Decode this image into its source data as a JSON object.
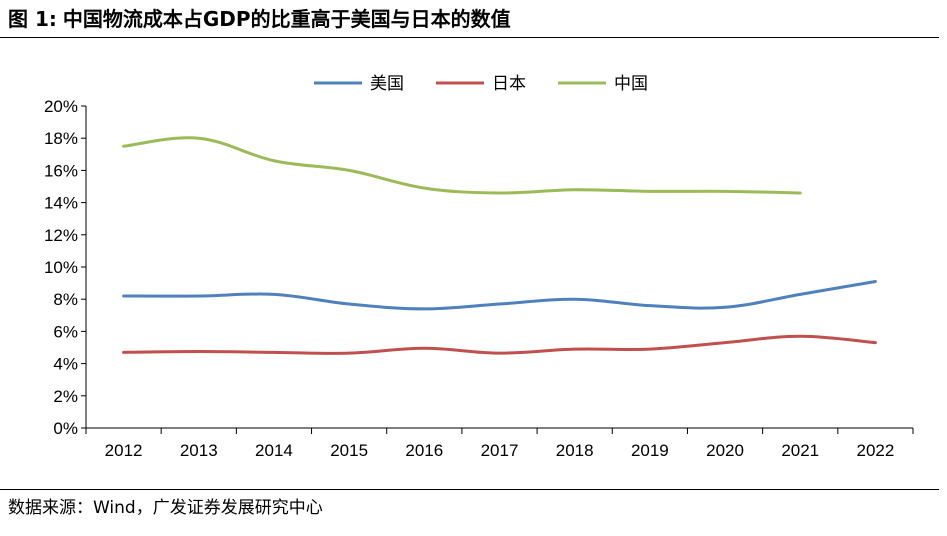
{
  "figure": {
    "label": "图 1:",
    "title": "中国物流成本占GDP的比重高于美国与日本的数值"
  },
  "source": "数据来源：Wind，广发证券发展研究中心",
  "chart_data": {
    "type": "line",
    "title": "中国物流成本占GDP的比重高于美国与日本的数值",
    "xlabel": "",
    "ylabel": "",
    "categories": [
      "2012",
      "2013",
      "2014",
      "2015",
      "2016",
      "2017",
      "2018",
      "2019",
      "2020",
      "2021",
      "2022"
    ],
    "y_ticks": [
      "0%",
      "2%",
      "4%",
      "6%",
      "8%",
      "10%",
      "12%",
      "14%",
      "16%",
      "18%",
      "20%"
    ],
    "ylim": [
      0,
      20
    ],
    "y_unit": "%",
    "grid": false,
    "legend_position": "top-center",
    "series": [
      {
        "name": "美国",
        "color": "#4F81BD",
        "values": [
          8.2,
          8.2,
          8.3,
          7.7,
          7.4,
          7.7,
          8.0,
          7.6,
          7.5,
          8.3,
          9.1
        ]
      },
      {
        "name": "日本",
        "color": "#C0504D",
        "values": [
          4.7,
          4.75,
          4.7,
          4.65,
          4.95,
          4.65,
          4.9,
          4.9,
          5.3,
          5.7,
          5.3
        ]
      },
      {
        "name": "中国",
        "color": "#9BBB59",
        "values": [
          17.5,
          18.0,
          16.6,
          16.0,
          14.9,
          14.6,
          14.8,
          14.7,
          14.7,
          14.6,
          null
        ]
      }
    ]
  }
}
